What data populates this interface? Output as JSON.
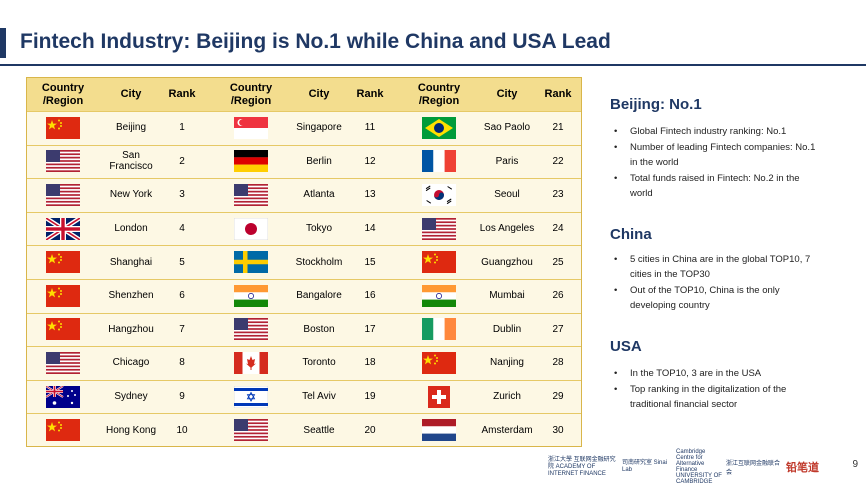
{
  "title": "Fintech Industry: Beijing is No.1 while China and USA Lead",
  "headers": [
    "Country /Region",
    "City",
    "Rank"
  ],
  "rows": [
    [
      {
        "flag": "china",
        "city": "Beijing",
        "rank": "1"
      },
      {
        "flag": "singapore",
        "city": "Singapore",
        "rank": "11"
      },
      {
        "flag": "brazil",
        "city": "Sao Paolo",
        "rank": "21"
      }
    ],
    [
      {
        "flag": "usa",
        "city": "San Francisco",
        "rank": "2"
      },
      {
        "flag": "germany",
        "city": "Berlin",
        "rank": "12"
      },
      {
        "flag": "france",
        "city": "Paris",
        "rank": "22"
      }
    ],
    [
      {
        "flag": "usa",
        "city": "New York",
        "rank": "3"
      },
      {
        "flag": "usa",
        "city": "Atlanta",
        "rank": "13"
      },
      {
        "flag": "korea",
        "city": "Seoul",
        "rank": "23"
      }
    ],
    [
      {
        "flag": "uk",
        "city": "London",
        "rank": "4"
      },
      {
        "flag": "japan",
        "city": "Tokyo",
        "rank": "14"
      },
      {
        "flag": "usa",
        "city": "Los Angeles",
        "rank": "24"
      }
    ],
    [
      {
        "flag": "china",
        "city": "Shanghai",
        "rank": "5"
      },
      {
        "flag": "sweden",
        "city": "Stockholm",
        "rank": "15"
      },
      {
        "flag": "china",
        "city": "Guangzhou",
        "rank": "25"
      }
    ],
    [
      {
        "flag": "china",
        "city": "Shenzhen",
        "rank": "6"
      },
      {
        "flag": "india",
        "city": "Bangalore",
        "rank": "16"
      },
      {
        "flag": "india",
        "city": "Mumbai",
        "rank": "26"
      }
    ],
    [
      {
        "flag": "china",
        "city": "Hangzhou",
        "rank": "7"
      },
      {
        "flag": "usa",
        "city": "Boston",
        "rank": "17"
      },
      {
        "flag": "ireland",
        "city": "Dublin",
        "rank": "27"
      }
    ],
    [
      {
        "flag": "usa",
        "city": "Chicago",
        "rank": "8"
      },
      {
        "flag": "canada",
        "city": "Toronto",
        "rank": "18"
      },
      {
        "flag": "china",
        "city": "Nanjing",
        "rank": "28"
      }
    ],
    [
      {
        "flag": "australia",
        "city": "Sydney",
        "rank": "9"
      },
      {
        "flag": "israel",
        "city": "Tel Aviv",
        "rank": "19"
      },
      {
        "flag": "switzerland",
        "city": "Zurich",
        "rank": "29"
      }
    ],
    [
      {
        "flag": "china",
        "city": "Hong Kong",
        "rank": "10"
      },
      {
        "flag": "usa",
        "city": "Seattle",
        "rank": "20"
      },
      {
        "flag": "netherlands",
        "city": "Amsterdam",
        "rank": "30"
      }
    ]
  ],
  "sections": [
    {
      "title": "Beijing: No.1",
      "bullets": [
        "Global Fintech industry ranking: No.1",
        "Number of leading Fintech companies: No.1 in the world",
        "Total funds raised in Fintech: No.2 in the world"
      ]
    },
    {
      "title": "China",
      "bullets": [
        "5 cities in China are in the global TOP10, 7 cities in the TOP30",
        "Out of the TOP10, China is the only developing country"
      ]
    },
    {
      "title": "USA",
      "bullets": [
        "In the TOP10, 3 are in the USA",
        "Top ranking in the digitalization of the traditional financial sector"
      ]
    }
  ],
  "footer": {
    "logo1": "浙江大學 互联网金融研究院 ACADEMY OF INTERNET FINANCE",
    "logo2": "司南研究室 Sinai Lab",
    "logo3": "Cambridge Centre for Alternative Finance UNIVERSITY OF CAMBRIDGE",
    "logo4": "浙江互联网金融联合会",
    "logo5": "铅笔道",
    "page": "9"
  }
}
